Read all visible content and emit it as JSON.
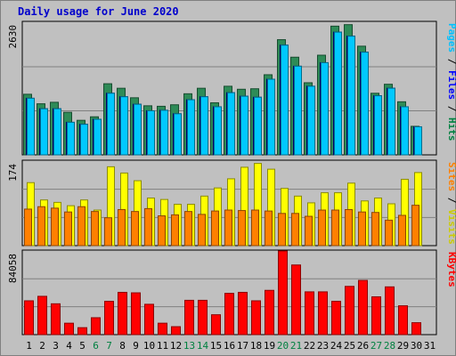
{
  "chart_data": {
    "type": "bar",
    "title": "Daily usage for June 2020",
    "categories": [
      "1",
      "2",
      "3",
      "4",
      "5",
      "6",
      "7",
      "8",
      "9",
      "10",
      "11",
      "12",
      "13",
      "14",
      "15",
      "16",
      "17",
      "18",
      "19",
      "20",
      "21",
      "22",
      "23",
      "24",
      "25",
      "26",
      "27",
      "28",
      "29",
      "30",
      "31"
    ],
    "weekend_days": [
      6,
      7,
      13,
      14,
      20,
      21,
      27,
      28
    ],
    "colors": {
      "hits": "#008040",
      "files": "#00c0ff",
      "pages": "#00c0ff",
      "visits": "#ffff00",
      "sites": "#ff8000",
      "kbytes": "#ff0000",
      "weekend_label": "#008040",
      "weekday_label": "#000000"
    },
    "panels": [
      {
        "name": "hits-files-pages",
        "ymax_label": "2630",
        "ymax": 2630,
        "right_labels": [
          {
            "text": "Pages",
            "color": "#00c0ff"
          },
          {
            "text": " / ",
            "color": "#000000"
          },
          {
            "text": "Files",
            "color": "#0000ff"
          },
          {
            "text": " / ",
            "color": "#000000"
          },
          {
            "text": "Hits",
            "color": "#008040"
          }
        ],
        "series": [
          {
            "name": "Hits",
            "color": "#2e8b57",
            "values": [
              1210,
              1020,
              1050,
              850,
              690,
              760,
              1420,
              1330,
              1140,
              980,
              970,
              1000,
              1220,
              1330,
              1040,
              1370,
              1310,
              1320,
              1600,
              2300,
              1950,
              1440,
              1990,
              2570,
              2600,
              2170,
              1230,
              1410,
              1060,
              570,
              0
            ]
          },
          {
            "name": "Files",
            "color": "#0000cc",
            "values": [
              1130,
              920,
              920,
              650,
              610,
              710,
              1230,
              1160,
              1010,
              880,
              890,
              820,
              1100,
              1160,
              960,
              1240,
              1170,
              1150,
              1510,
              2190,
              1770,
              1370,
              1840,
              2450,
              2370,
              2050,
              1180,
              1330,
              960,
              560,
              0
            ]
          },
          {
            "name": "Pages",
            "color": "#00c8ff",
            "values": [
              1130,
              920,
              920,
              650,
              610,
              710,
              1230,
              1160,
              1010,
              880,
              890,
              820,
              1100,
              1160,
              960,
              1240,
              1170,
              1150,
              1510,
              2190,
              1770,
              1370,
              1840,
              2450,
              2370,
              2050,
              1180,
              1330,
              960,
              560,
              0
            ]
          }
        ]
      },
      {
        "name": "visits-sites",
        "ymax_label": "174",
        "ymax": 174,
        "right_labels": [
          {
            "text": "Sites",
            "color": "#ff8000"
          },
          {
            "text": " / ",
            "color": "#000000"
          },
          {
            "text": "Visits",
            "color": "#cccc00"
          }
        ],
        "series": [
          {
            "name": "Visits",
            "color": "#ffff00",
            "values": [
              131,
              95,
              90,
              83,
              95,
              74,
              164,
              151,
              135,
              99,
              96,
              86,
              86,
              103,
              120,
              139,
              163,
              171,
              159,
              119,
              103,
              89,
              110,
              110,
              130,
              93,
              99,
              87,
              138,
              152,
              0
            ]
          },
          {
            "name": "Sites",
            "color": "#ff8000",
            "values": [
              76,
              81,
              78,
              70,
              81,
              71,
              58,
              75,
              71,
              77,
              62,
              64,
              71,
              65,
              72,
              74,
              73,
              74,
              72,
              67,
              67,
              61,
              74,
              74,
              75,
              70,
              69,
              53,
              63,
              84,
              0
            ]
          }
        ]
      },
      {
        "name": "kbytes",
        "ymax_label": "84058",
        "ymax": 84058,
        "right_labels": [
          {
            "text": "KBytes",
            "color": "#ff0000"
          }
        ],
        "series": [
          {
            "name": "KBytes",
            "color": "#ff0000",
            "values": [
              34000,
              38500,
              31000,
              11500,
              7000,
              17000,
              33500,
              42500,
              42000,
              30500,
              11500,
              8000,
              34500,
              34500,
              20000,
              41500,
              42500,
              34000,
              44500,
              84058,
              70000,
              43000,
              43000,
              33500,
              48500,
              54500,
              38000,
              48000,
              29000,
              12000,
              0
            ]
          }
        ]
      }
    ]
  }
}
